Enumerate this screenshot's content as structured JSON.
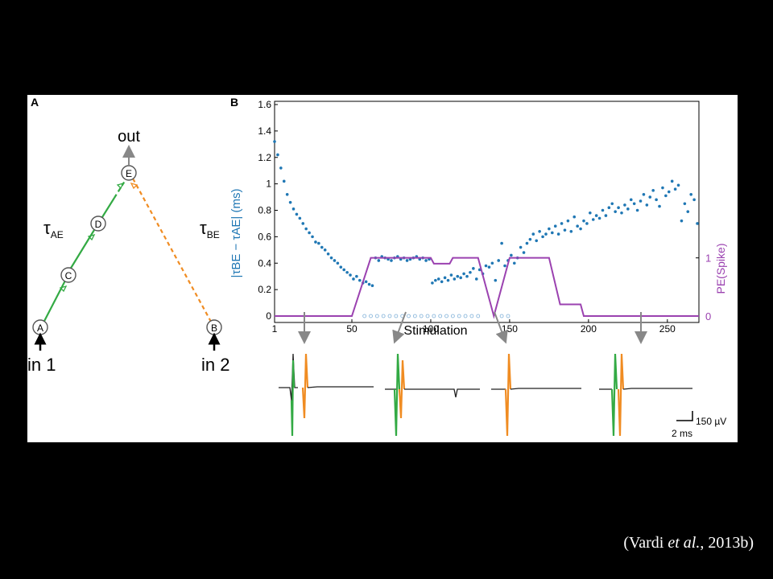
{
  "colors": {
    "scatter": "#1f77b4",
    "scatter_open": "#7fb0d8",
    "pe_line": "#9b42b0",
    "path_ae": "#33aa44",
    "path_be": "#f08c22",
    "neuron": "#555555",
    "trace": "#222222"
  },
  "panelA": {
    "label": "A",
    "out_label": "out",
    "in1_label": "in 1",
    "in2_label": "in 2",
    "nodes": [
      "A",
      "B",
      "C",
      "D",
      "E"
    ],
    "tau_ae_main": "τ",
    "tau_ae_sub": "AE",
    "tau_be_main": "τ",
    "tau_be_sub": "BE"
  },
  "panelB": {
    "label": "B",
    "scale_voltage": "150 µV",
    "scale_time": "2 ms"
  },
  "chart_data": {
    "type": "scatter",
    "xlabel": "Stimulation",
    "ylabel": "|τBE − τAE| (ms)",
    "ylabel_right": "PE(Spike)",
    "xlim": [
      1,
      270
    ],
    "ylim": [
      0,
      1.6
    ],
    "xticks": [
      "1",
      "50",
      "100",
      "150",
      "200",
      "250"
    ],
    "yticks": [
      "0",
      "0.2",
      "0.4",
      "0.6",
      "0.8",
      "1",
      "1.2",
      "1.4",
      "1.6"
    ],
    "yticks_right": [
      "0",
      "1"
    ],
    "series": [
      {
        "kind": "scatter",
        "x": [
          1,
          3,
          5,
          7,
          9,
          11,
          13,
          15,
          17,
          19,
          21,
          23,
          25,
          27,
          29,
          31,
          33,
          35,
          37,
          39,
          41,
          43,
          45,
          47,
          49,
          51,
          53,
          55,
          57,
          59,
          61,
          63,
          65,
          67,
          69,
          71,
          73,
          75,
          77,
          79,
          81,
          83,
          85,
          87,
          89,
          91,
          93,
          95,
          97,
          99,
          101,
          103,
          105,
          107,
          109,
          111,
          113,
          115,
          117,
          119,
          121,
          123,
          125,
          127,
          129,
          131,
          133,
          135,
          137,
          139,
          141,
          143,
          145,
          147,
          149,
          151,
          153,
          155,
          157,
          159,
          161,
          163,
          165,
          167,
          169,
          171,
          173,
          175,
          177,
          179,
          181,
          183,
          185,
          187,
          189,
          191,
          193,
          195,
          197,
          199,
          201,
          203,
          205,
          207,
          209,
          211,
          213,
          215,
          217,
          219,
          221,
          223,
          225,
          227,
          229,
          231,
          233,
          235,
          237,
          239,
          241,
          243,
          245,
          247,
          249,
          251,
          253,
          255,
          257,
          259,
          261,
          263,
          265,
          267,
          269
        ],
        "y": [
          1.32,
          1.22,
          1.12,
          1.02,
          0.92,
          0.86,
          0.81,
          0.77,
          0.74,
          0.7,
          0.66,
          0.63,
          0.6,
          0.56,
          0.55,
          0.52,
          0.5,
          0.47,
          0.44,
          0.42,
          0.4,
          0.37,
          0.35,
          0.33,
          0.31,
          0.28,
          0.3,
          0.27,
          0.25,
          0.26,
          0.24,
          0.23,
          0.44,
          0.42,
          0.45,
          0.44,
          0.43,
          0.42,
          0.44,
          0.45,
          0.43,
          0.44,
          0.42,
          0.43,
          0.44,
          0.45,
          0.43,
          0.44,
          0.42,
          0.43,
          0.25,
          0.27,
          0.28,
          0.26,
          0.29,
          0.27,
          0.31,
          0.28,
          0.3,
          0.29,
          0.32,
          0.3,
          0.33,
          0.36,
          0.28,
          0.35,
          0.32,
          0.38,
          0.37,
          0.4,
          0.27,
          0.42,
          0.55,
          0.38,
          0.42,
          0.46,
          0.4,
          0.44,
          0.52,
          0.48,
          0.55,
          0.58,
          0.62,
          0.57,
          0.64,
          0.6,
          0.62,
          0.66,
          0.63,
          0.68,
          0.62,
          0.7,
          0.65,
          0.72,
          0.64,
          0.75,
          0.68,
          0.66,
          0.72,
          0.7,
          0.78,
          0.73,
          0.76,
          0.74,
          0.8,
          0.76,
          0.82,
          0.85,
          0.79,
          0.82,
          0.78,
          0.84,
          0.81,
          0.88,
          0.85,
          0.8,
          0.87,
          0.92,
          0.84,
          0.9,
          0.95,
          0.88,
          0.83,
          0.97,
          0.91,
          0.94,
          1.02,
          0.96,
          0.99,
          0.72,
          0.85,
          0.79,
          0.92,
          0.88,
          0.7
        ]
      },
      {
        "kind": "open_markers",
        "x": [
          58,
          62,
          66,
          70,
          74,
          78,
          82,
          86,
          90,
          94,
          98,
          102,
          106,
          110,
          114,
          118,
          122,
          126,
          130,
          145,
          149
        ],
        "y": [
          0,
          0,
          0,
          0,
          0,
          0,
          0,
          0,
          0,
          0,
          0,
          0,
          0,
          0,
          0,
          0,
          0,
          0,
          0,
          0,
          0
        ]
      },
      {
        "kind": "line",
        "axis": "right",
        "x": [
          1,
          50,
          62,
          100,
          102,
          112,
          114,
          130,
          140,
          150,
          175,
          182,
          185,
          195,
          197,
          270
        ],
        "y": [
          0,
          0,
          1,
          1,
          0.9,
          0.9,
          1,
          1,
          0,
          1,
          1,
          0.2,
          0.2,
          0.2,
          0,
          0
        ]
      }
    ]
  }
}
